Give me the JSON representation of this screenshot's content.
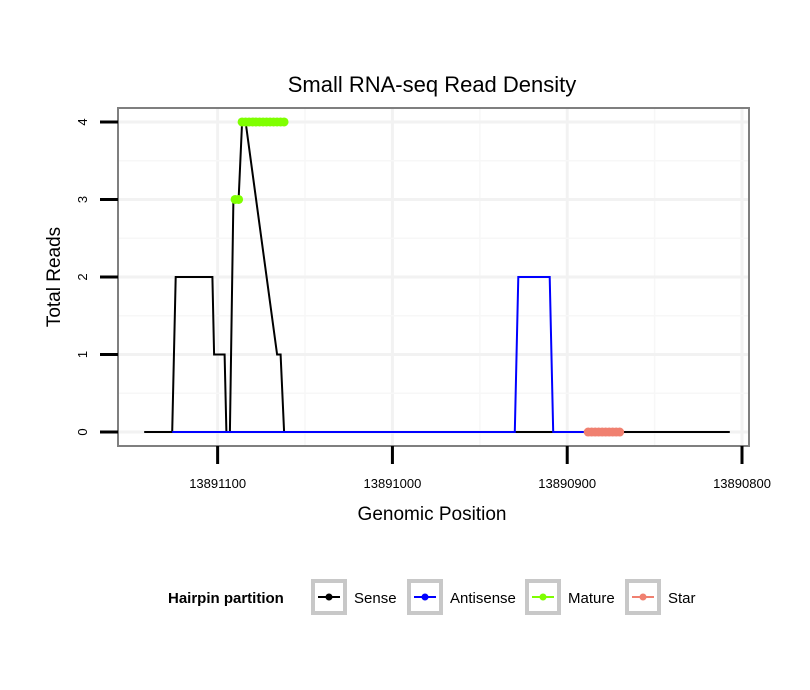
{
  "chart_data": {
    "type": "line",
    "title": "Small RNA-seq Read Density",
    "xlabel": "Genomic Position",
    "ylabel": "Total Reads",
    "x_reversed": true,
    "xlim": [
      13891157,
      13890796
    ],
    "ylim": [
      -0.18,
      4.18
    ],
    "x_ticks": [
      13891100,
      13891000,
      13890900,
      13890800
    ],
    "x_tick_labels": [
      "13891100",
      "13891000",
      "13890900",
      "13890800"
    ],
    "y_ticks": [
      0,
      1,
      2,
      3,
      4
    ],
    "y_tick_labels": [
      "0",
      "1",
      "2",
      "3",
      "4"
    ],
    "grid": true,
    "legend": {
      "title": "Hairpin partition",
      "position": "bottom",
      "entries": [
        "Sense",
        "Antisense",
        "Mature",
        "Star"
      ]
    },
    "colors": {
      "Sense": "#000000",
      "Antisense": "#0000ff",
      "Mature": "#7fff00",
      "Star": "#f08070"
    },
    "series": [
      {
        "name": "Sense",
        "style": "line",
        "x": [
          13891142,
          13891126,
          13891124,
          13891103,
          13891102,
          13891096,
          13891095,
          13891093,
          13891091,
          13891088,
          13891086,
          13891084,
          13891066,
          13891064,
          13891062,
          13890807
        ],
        "values": [
          0,
          0,
          2,
          2,
          1,
          1,
          0,
          0,
          3,
          3,
          4,
          4,
          1,
          1,
          0,
          0
        ]
      },
      {
        "name": "Antisense",
        "style": "line",
        "x": [
          13891126,
          13891064,
          13891062,
          13890930,
          13890928,
          13890910,
          13890908,
          13890880
        ],
        "values": [
          0,
          0,
          0,
          0,
          2,
          2,
          0,
          0
        ]
      },
      {
        "name": "Mature",
        "style": "points",
        "x": [
          13891090,
          13891088,
          13891086,
          13891084,
          13891082,
          13891080,
          13891078,
          13891076,
          13891074,
          13891072,
          13891070,
          13891068,
          13891066,
          13891064,
          13891062
        ],
        "values": [
          3,
          3,
          4,
          4,
          4,
          4,
          4,
          4,
          4,
          4,
          4,
          4,
          4,
          4,
          4
        ]
      },
      {
        "name": "Star",
        "style": "points",
        "x": [
          13890888,
          13890886,
          13890884,
          13890882,
          13890880,
          13890878,
          13890876,
          13890874,
          13890872,
          13890870
        ],
        "values": [
          0,
          0,
          0,
          0,
          0,
          0,
          0,
          0,
          0,
          0
        ]
      }
    ]
  }
}
